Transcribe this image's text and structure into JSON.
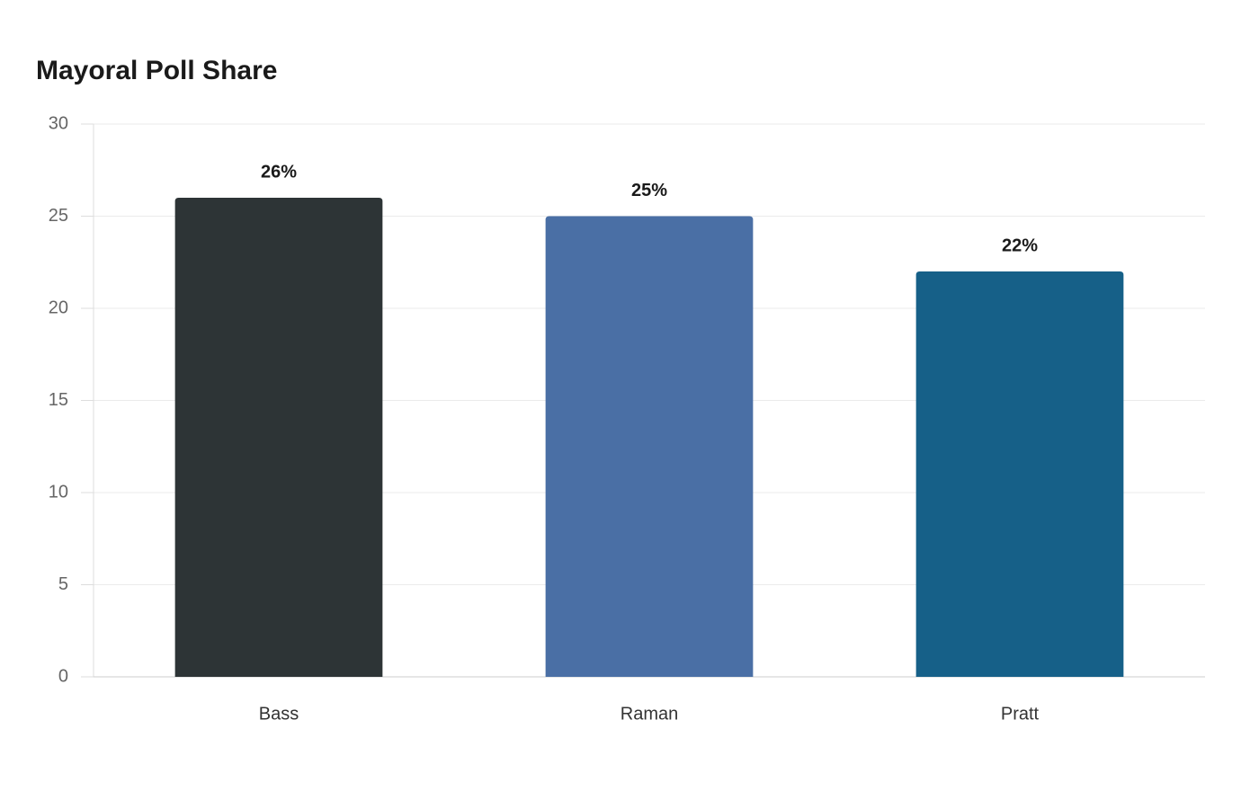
{
  "chart_data": {
    "type": "bar",
    "title": "Mayoral Poll Share",
    "categories": [
      "Bass",
      "Raman",
      "Pratt"
    ],
    "values": [
      26,
      25,
      22
    ],
    "value_labels": [
      "26%",
      "25%",
      "22%"
    ],
    "colors": [
      "#2d3436",
      "#4a6fa5",
      "#166088"
    ],
    "ylim": [
      0,
      30
    ],
    "yticks": [
      0,
      5,
      10,
      15,
      20,
      25,
      30
    ],
    "grid": true
  }
}
